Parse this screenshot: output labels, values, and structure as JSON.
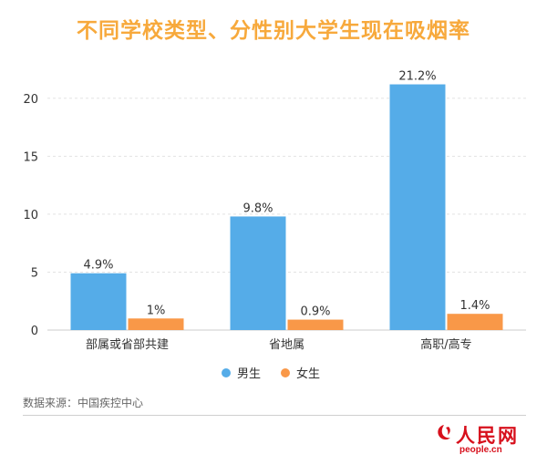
{
  "title": "不同学校类型、分性别大学生现在吸烟率",
  "source": "数据来源：中国疾控中心",
  "logo": {
    "name": "人民网",
    "url": "people.cn"
  },
  "chart_data": {
    "type": "bar",
    "title": "不同学校类型、分性别大学生现在吸烟率",
    "categories": [
      "部属或省部共建",
      "省地属",
      "高职/高专"
    ],
    "series": [
      {
        "name": "男生",
        "values": [
          4.9,
          9.8,
          21.2
        ],
        "labels": [
          "4.9%",
          "9.8%",
          "21.2%"
        ],
        "color": "#55ace8"
      },
      {
        "name": "女生",
        "values": [
          1,
          0.9,
          1.4
        ],
        "labels": [
          "1%",
          "0.9%",
          "1.4%"
        ],
        "color": "#f99848"
      }
    ],
    "ylim": [
      0,
      22.5
    ],
    "yticks": [
      0,
      5,
      10,
      15,
      20
    ],
    "grid": true,
    "legend": "bottom"
  }
}
